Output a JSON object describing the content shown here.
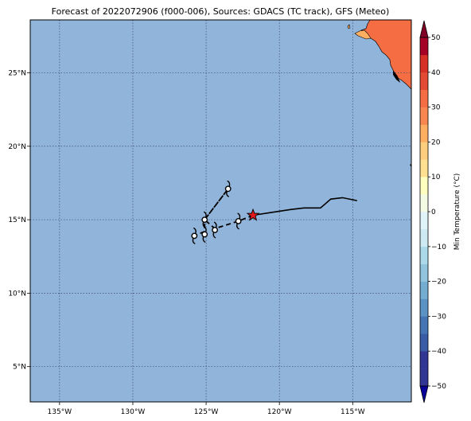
{
  "title": "Forecast of 2022072906 (f000-006), Sources: GDACS (TC track), GFS (Meteo)",
  "map": {
    "lon_range": [
      -137,
      -111
    ],
    "lat_range": [
      2.6,
      28.6
    ],
    "lon_ticks": [
      {
        "value": -135,
        "label": "135°W"
      },
      {
        "value": -130,
        "label": "130°W"
      },
      {
        "value": -125,
        "label": "125°W"
      },
      {
        "value": -120,
        "label": "120°W"
      },
      {
        "value": -115,
        "label": "115°W"
      }
    ],
    "lat_ticks": [
      {
        "value": 5,
        "label": "5°N"
      },
      {
        "value": 10,
        "label": "10°N"
      },
      {
        "value": 15,
        "label": "15°N"
      },
      {
        "value": 20,
        "label": "20°N"
      },
      {
        "value": 25,
        "label": "25°N"
      }
    ],
    "grid": "dotted",
    "ocean_color": "#91b5da",
    "land_color": "#f46d43",
    "land_light_color": "#fdae61"
  },
  "colorbar": {
    "label": "Min Temperature (°C)",
    "min": -50,
    "max": 50,
    "ticks": [
      {
        "value": 50,
        "label": "50"
      },
      {
        "value": 40,
        "label": "40"
      },
      {
        "value": 30,
        "label": "30"
      },
      {
        "value": 20,
        "label": "20"
      },
      {
        "value": 10,
        "label": "10"
      },
      {
        "value": 0,
        "label": "0"
      },
      {
        "value": -10,
        "label": "−10"
      },
      {
        "value": -20,
        "label": "−20"
      },
      {
        "value": -30,
        "label": "−30"
      },
      {
        "value": -40,
        "label": "−40"
      },
      {
        "value": -50,
        "label": "−50"
      }
    ],
    "bands": [
      {
        "from": -50,
        "to": -45,
        "color": "#313695"
      },
      {
        "from": -45,
        "to": -40,
        "color": "#313695"
      },
      {
        "from": -40,
        "to": -35,
        "color": "#3a5ba6"
      },
      {
        "from": -35,
        "to": -30,
        "color": "#4575b4"
      },
      {
        "from": -30,
        "to": -25,
        "color": "#5b93c4"
      },
      {
        "from": -25,
        "to": -20,
        "color": "#74add1"
      },
      {
        "from": -20,
        "to": -15,
        "color": "#91c4dd"
      },
      {
        "from": -15,
        "to": -10,
        "color": "#abd9e9"
      },
      {
        "from": -10,
        "to": -5,
        "color": "#cde9f1"
      },
      {
        "from": -5,
        "to": 0,
        "color": "#e0f3f8"
      },
      {
        "from": 0,
        "to": 5,
        "color": "#f4fbe5"
      },
      {
        "from": 5,
        "to": 10,
        "color": "#ffffbf"
      },
      {
        "from": 10,
        "to": 15,
        "color": "#fee090"
      },
      {
        "from": 15,
        "to": 20,
        "color": "#fece7f"
      },
      {
        "from": 20,
        "to": 25,
        "color": "#fdae61"
      },
      {
        "from": 25,
        "to": 30,
        "color": "#f8864f"
      },
      {
        "from": 30,
        "to": 35,
        "color": "#f46d43"
      },
      {
        "from": 35,
        "to": 40,
        "color": "#e34a33"
      },
      {
        "from": 40,
        "to": 45,
        "color": "#d73027"
      },
      {
        "from": 45,
        "to": 50,
        "color": "#a50026"
      }
    ],
    "extend_low_color": "#08009a",
    "extend_high_color": "#800026"
  },
  "track": {
    "past": [
      [
        -114.7,
        16.3
      ],
      [
        -115.7,
        16.5
      ],
      [
        -116.5,
        16.4
      ],
      [
        -117.2,
        15.8
      ],
      [
        -118.3,
        15.8
      ],
      [
        -119.2,
        15.7
      ],
      [
        -120.5,
        15.5
      ],
      [
        -121.8,
        15.3
      ]
    ],
    "current": {
      "lon": -121.8,
      "lat": 15.3,
      "marker": "star",
      "color": "#e31a1c"
    },
    "forecast": [
      [
        -121.8,
        15.3
      ],
      [
        -122.8,
        14.9
      ],
      [
        -124.4,
        14.4
      ],
      [
        -125.1,
        15.0
      ],
      [
        -123.5,
        17.1
      ],
      [
        -125.1,
        15.0
      ],
      [
        -125.1,
        14.2
      ],
      [
        -125.8,
        13.9
      ]
    ],
    "forecast_symbols": [
      {
        "lon": -123.5,
        "lat": 17.1
      },
      {
        "lon": -125.1,
        "lat": 15.0
      },
      {
        "lon": -122.8,
        "lat": 14.9
      },
      {
        "lon": -124.4,
        "lat": 14.3
      },
      {
        "lon": -125.1,
        "lat": 14.0
      },
      {
        "lon": -125.8,
        "lat": 13.9
      }
    ]
  }
}
